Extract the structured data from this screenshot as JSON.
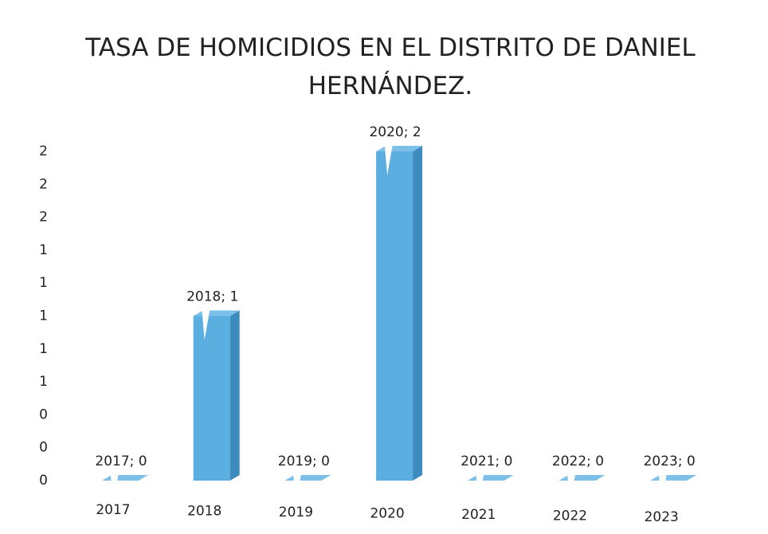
{
  "chart_data": {
    "type": "bar",
    "title": "TASA DE HOMICIDIOS EN EL DISTRITO DE DANIEL HERNÁNDEZ.",
    "categories": [
      "2017",
      "2018",
      "2019",
      "2020",
      "2021",
      "2022",
      "2023"
    ],
    "values": [
      0,
      1,
      0,
      2,
      0,
      0,
      0
    ],
    "value_labels": [
      "2017; 0",
      "2018; 1",
      "2019; 0",
      "2020; 2",
      "2021; 0",
      "2022; 0",
      "2023; 0"
    ],
    "color": "#5aaee0",
    "ylim": [
      0,
      2
    ],
    "yticks": [
      0,
      {
        "value": 0.2,
        "label": "0"
      },
      {
        "value": 0.4,
        "label": "0"
      },
      {
        "value": 0.6,
        "label": "1"
      },
      {
        "value": 0.8,
        "label": "1"
      },
      1,
      {
        "value": 1.2,
        "label": "1"
      },
      {
        "value": 1.4,
        "label": "1"
      },
      {
        "value": 1.6,
        "label": "2"
      },
      {
        "value": 1.8,
        "label": "2"
      },
      2
    ],
    "grid": false
  }
}
